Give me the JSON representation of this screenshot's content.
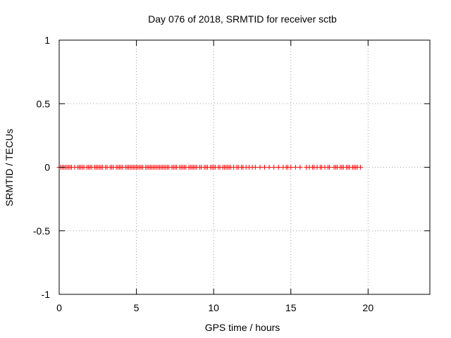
{
  "chart_data": {
    "type": "scatter",
    "title": "Day 076 of 2018, SRMTID for receiver sctb",
    "xlabel": "GPS time / hours",
    "ylabel": "SRMTID / TECUs",
    "xlim": [
      0,
      24
    ],
    "ylim": [
      -1,
      1
    ],
    "xticks": [
      0,
      5,
      10,
      15,
      20
    ],
    "xtick_labels": [
      "0",
      "5",
      "10",
      "15",
      "20"
    ],
    "yticks": [
      -1,
      -0.5,
      0,
      0.5,
      1
    ],
    "ytick_labels": [
      "-1",
      "-0.5",
      "0",
      "0.5",
      "1"
    ],
    "grid": true,
    "marker": "+",
    "color": "#ff0000",
    "series": [
      {
        "x": [
          0.0,
          0.1,
          0.2,
          0.3,
          0.4,
          0.5,
          0.6,
          0.7,
          0.8,
          1.0,
          1.2,
          1.3,
          1.4,
          1.5,
          1.6,
          1.8,
          1.9,
          2.0,
          2.1,
          2.3,
          2.4,
          2.5,
          2.6,
          2.7,
          2.8,
          3.0,
          3.1,
          3.3,
          3.4,
          3.5,
          3.7,
          3.8,
          3.9,
          4.0,
          4.1,
          4.3,
          4.4,
          4.5,
          4.6,
          4.7,
          4.8,
          4.9,
          5.0,
          5.1,
          5.2,
          5.3,
          5.4,
          5.6,
          5.7,
          5.8,
          5.9,
          6.0,
          6.1,
          6.2,
          6.3,
          6.4,
          6.5,
          6.6,
          6.7,
          6.8,
          6.9,
          7.0,
          7.1,
          7.3,
          7.4,
          7.5,
          7.6,
          7.8,
          7.9,
          8.0,
          8.1,
          8.2,
          8.4,
          8.5,
          8.6,
          8.7,
          8.8,
          8.9,
          9.1,
          9.2,
          9.4,
          9.5,
          9.6,
          9.8,
          9.9,
          10.0,
          10.1,
          10.3,
          10.4,
          10.6,
          10.7,
          10.8,
          10.9,
          11.0,
          11.1,
          11.3,
          11.5,
          11.6,
          11.8,
          11.9,
          12.1,
          12.3,
          12.5,
          12.7,
          13.0,
          13.3,
          13.6,
          13.9,
          14.2,
          14.5,
          14.7,
          14.8,
          15.0,
          15.3,
          15.6,
          16.0,
          16.2,
          16.4,
          16.5,
          16.7,
          16.9,
          17.0,
          17.2,
          17.4,
          17.5,
          17.8,
          17.9,
          18.0,
          18.2,
          18.3,
          18.4,
          18.6,
          18.7,
          18.8,
          19.0,
          19.1,
          19.2,
          19.3,
          19.5
        ],
        "y": [
          0,
          0,
          0,
          0,
          0,
          0,
          0,
          0,
          0,
          0,
          0,
          0,
          0,
          0,
          0,
          0,
          0,
          0,
          0,
          0,
          0,
          0,
          0,
          0,
          0,
          0,
          0,
          0,
          0,
          0,
          0,
          0,
          0,
          0,
          0,
          0,
          0,
          0,
          0,
          0,
          0,
          0,
          0,
          0,
          0,
          0,
          0,
          0,
          0,
          0,
          0,
          0,
          0,
          0,
          0,
          0,
          0,
          0,
          0,
          0,
          0,
          0,
          0,
          0,
          0,
          0,
          0,
          0,
          0,
          0,
          0,
          0,
          0,
          0,
          0,
          0,
          0,
          0,
          0,
          0,
          0,
          0,
          0,
          0,
          0,
          0,
          0,
          0,
          0,
          0,
          0,
          0,
          0,
          0,
          0,
          0,
          0,
          0,
          0,
          0,
          0,
          0,
          0,
          0,
          0,
          0,
          0,
          0,
          0,
          0,
          0,
          0,
          0,
          0,
          0,
          0,
          0,
          0,
          0,
          0,
          0,
          0,
          0,
          0,
          0,
          0,
          0,
          0,
          0,
          0,
          0,
          0,
          0,
          0,
          0,
          0,
          0,
          0,
          0
        ]
      }
    ]
  }
}
